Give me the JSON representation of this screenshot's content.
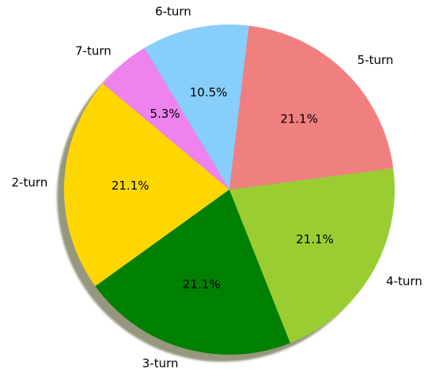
{
  "chart_data": {
    "type": "pie",
    "categories": [
      "2-turn",
      "3-turn",
      "4-turn",
      "5-turn",
      "6-turn",
      "7-turn"
    ],
    "values": [
      21.1,
      21.1,
      21.1,
      21.1,
      10.5,
      5.3
    ],
    "value_labels": [
      "21.1%",
      "21.1%",
      "21.1%",
      "21.1%",
      "10.5%",
      "5.3%"
    ],
    "colors": [
      "#ffd700",
      "#008000",
      "#9acd32",
      "#f08080",
      "#87cefa",
      "#ee82ee"
    ],
    "shadow": true,
    "title": "",
    "legend": false
  }
}
